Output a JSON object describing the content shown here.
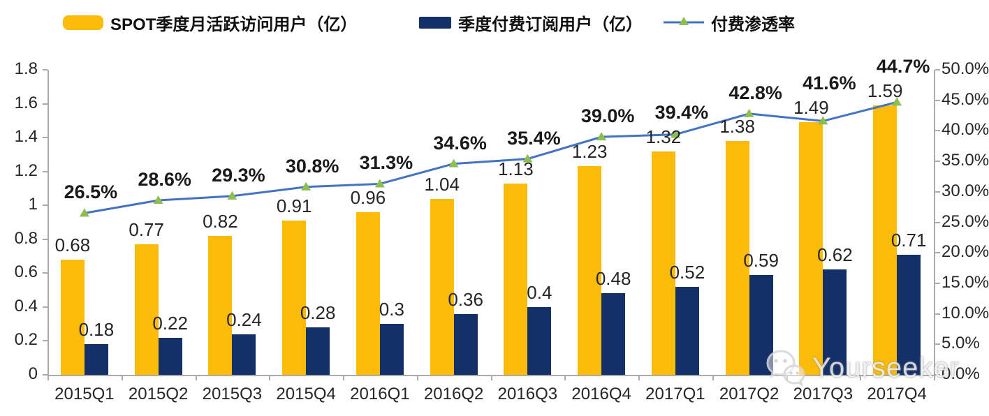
{
  "legend": {
    "items": [
      {
        "label": "SPOT季度月活跃访问用户（亿）",
        "swatch_color": "#FBBC09"
      },
      {
        "label": "季度付费订阅用户（亿）",
        "swatch_color": "#143068"
      },
      {
        "label": "付费渗透率",
        "line_color": "#4472C4",
        "marker_color": "#8CBE50"
      }
    ]
  },
  "watermark": {
    "text": "Yourseeker",
    "icon": "wechat-logo-icon"
  },
  "chart_data": {
    "type": "bar",
    "subtype": "grouped-bars-with-line-overlay-dual-axis",
    "title": "",
    "grid": false,
    "legend_position": "top",
    "categories": [
      "2015Q1",
      "2015Q2",
      "2015Q3",
      "2015Q4",
      "2016Q1",
      "2016Q2",
      "2016Q3",
      "2016Q4",
      "2017Q1",
      "2017Q2",
      "2017Q3",
      "2017Q4"
    ],
    "series": [
      {
        "name": "SPOT季度月活跃访问用户（亿）",
        "type": "bar",
        "axis": "left",
        "color": "#FBBC09",
        "values": [
          0.68,
          0.77,
          0.82,
          0.91,
          0.96,
          1.04,
          1.13,
          1.23,
          1.32,
          1.38,
          1.49,
          1.59
        ],
        "labels": [
          "0.68",
          "0.77",
          "0.82",
          "0.91",
          "0.96",
          "1.04",
          "1.13",
          "1.23",
          "1.32",
          "1.38",
          "1.49",
          "1.59"
        ]
      },
      {
        "name": "季度付费订阅用户（亿）",
        "type": "bar",
        "axis": "left",
        "color": "#143068",
        "values": [
          0.18,
          0.22,
          0.24,
          0.28,
          0.3,
          0.36,
          0.4,
          0.48,
          0.52,
          0.59,
          0.62,
          0.71
        ],
        "labels": [
          "0.18",
          "0.22",
          "0.24",
          "0.28",
          "0.3",
          "0.36",
          "0.4",
          "0.48",
          "0.52",
          "0.59",
          "0.62",
          "0.71"
        ]
      },
      {
        "name": "付费渗透率",
        "type": "line",
        "axis": "right",
        "color": "#4472C4",
        "marker": "triangle-up",
        "marker_color": "#8CBE50",
        "values": [
          26.5,
          28.6,
          29.3,
          30.8,
          31.3,
          34.6,
          35.4,
          39.0,
          39.4,
          42.8,
          41.6,
          44.7
        ],
        "labels": [
          "26.5%",
          "28.6%",
          "29.3%",
          "30.8%",
          "31.3%",
          "34.6%",
          "35.4%",
          "39.0%",
          "39.4%",
          "42.8%",
          "41.6%",
          "44.7%"
        ]
      }
    ],
    "left_axis": {
      "min": 0,
      "max": 1.8,
      "step": 0.2,
      "tick_labels": [
        "0",
        "0.2",
        "0.4",
        "0.6",
        "0.8",
        "1",
        "1.2",
        "1.4",
        "1.6",
        "1.8"
      ]
    },
    "right_axis": {
      "min": 0,
      "max": 50,
      "step": 5,
      "tick_labels": [
        "0.0%",
        "5.0%",
        "10.0%",
        "15.0%",
        "20.0%",
        "25.0%",
        "30.0%",
        "35.0%",
        "40.0%",
        "45.0%",
        "50.0%"
      ]
    }
  }
}
